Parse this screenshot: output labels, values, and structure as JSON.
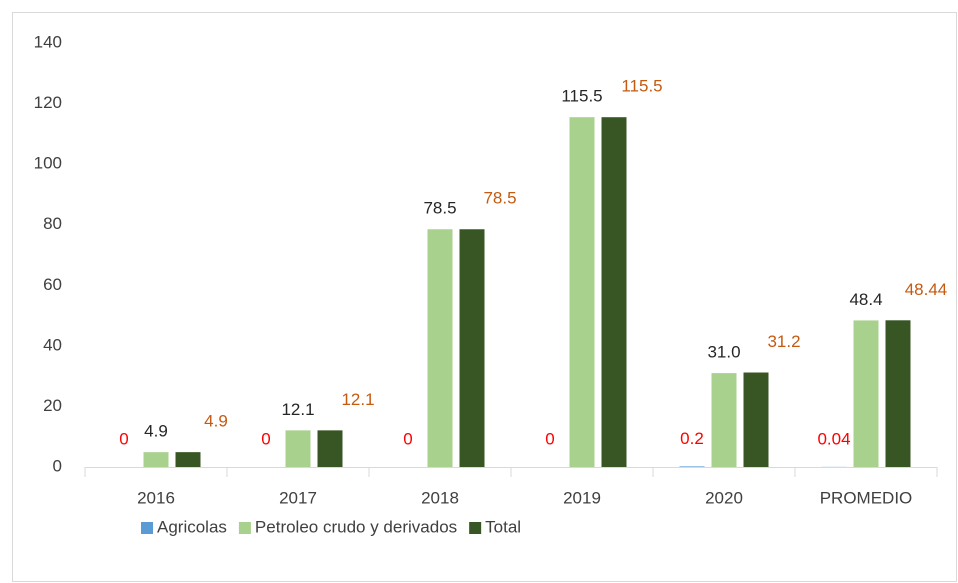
{
  "chart_data": {
    "type": "bar",
    "categories": [
      "2016",
      "2017",
      "2018",
      "2019",
      "2020",
      "PROMEDIO"
    ],
    "series": [
      {
        "name": "Agricolas",
        "color": "#5b9bd5",
        "label_color": "#ff0000",
        "values": [
          0,
          0,
          0,
          0,
          0.2,
          0.04
        ]
      },
      {
        "name": "Petroleo crudo y derivados",
        "color": "#a9d18e",
        "label_color": "#262626",
        "values": [
          4.9,
          12.1,
          78.5,
          115.5,
          31.0,
          48.4
        ],
        "value_labels": [
          "4.9",
          "12.1",
          "78.5",
          "115.5",
          "31.0",
          "48.4"
        ]
      },
      {
        "name": "Total",
        "color": "#375623",
        "label_color": "#c55a11",
        "values": [
          4.9,
          12.1,
          78.5,
          115.5,
          31.2,
          48.44
        ]
      }
    ],
    "ylim": [
      0,
      140
    ],
    "yticks": [
      0,
      20,
      40,
      60,
      80,
      100,
      120,
      140
    ],
    "grid": false,
    "legend": "bottom"
  }
}
